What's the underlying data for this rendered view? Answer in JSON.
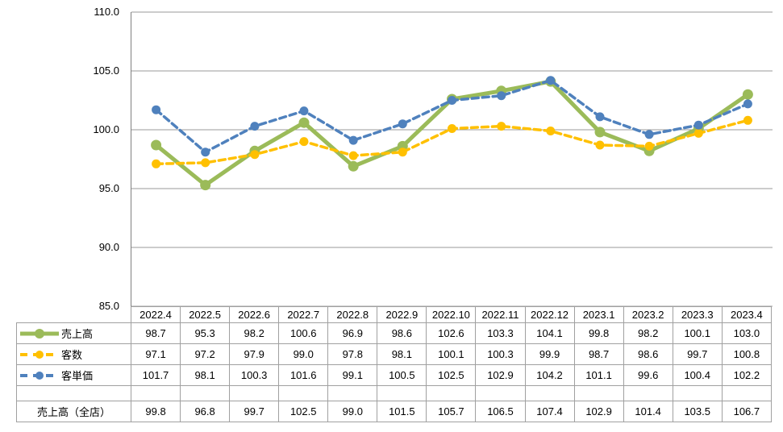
{
  "colors": {
    "background": "#ffffff",
    "gridline": "#9a9a9a",
    "axis_line": "#808080",
    "table_border": "#a0a0a0",
    "text": "#000000",
    "sales_green": "#9BBB59",
    "customers_yellow": "#FFC000",
    "unit_price_blue": "#4F81BD"
  },
  "y_axis": {
    "tick_labels": [
      "110.0",
      "105.0",
      "100.0",
      "95.0",
      "90.0",
      "85.0"
    ]
  },
  "chart_data": {
    "type": "line",
    "title": "",
    "xlabel": "",
    "ylabel": "",
    "ylim": [
      85,
      110
    ],
    "y_tick_step": 5,
    "grid": true,
    "legend_position": "table-left",
    "categories": [
      "2022.4",
      "2022.5",
      "2022.6",
      "2022.7",
      "2022.8",
      "2022.9",
      "2022.10",
      "2022.11",
      "2022.12",
      "2023.1",
      "2023.2",
      "2023.3",
      "2023.4"
    ],
    "series": [
      {
        "id": "sales",
        "name": "売上高",
        "style": "solid",
        "color": "#9BBB59",
        "values": [
          98.7,
          95.3,
          98.2,
          100.6,
          96.9,
          98.6,
          102.6,
          103.3,
          104.1,
          99.8,
          98.2,
          100.1,
          103.0
        ]
      },
      {
        "id": "customers",
        "name": "客数",
        "style": "dashed",
        "color": "#FFC000",
        "values": [
          97.1,
          97.2,
          97.9,
          99.0,
          97.8,
          98.1,
          100.1,
          100.3,
          99.9,
          98.7,
          98.6,
          99.7,
          100.8
        ]
      },
      {
        "id": "unit-price",
        "name": "客単価",
        "style": "dashed",
        "color": "#4F81BD",
        "values": [
          101.7,
          98.1,
          100.3,
          101.6,
          99.1,
          100.5,
          102.5,
          102.9,
          104.2,
          101.1,
          99.6,
          100.4,
          102.2
        ]
      }
    ],
    "extra_rows": [
      {
        "id": "sales-all-stores",
        "name": "売上高（全店）",
        "values": [
          99.8,
          96.8,
          99.7,
          102.5,
          99.0,
          101.5,
          105.7,
          106.5,
          107.4,
          102.9,
          101.4,
          103.5,
          106.7
        ]
      }
    ]
  }
}
